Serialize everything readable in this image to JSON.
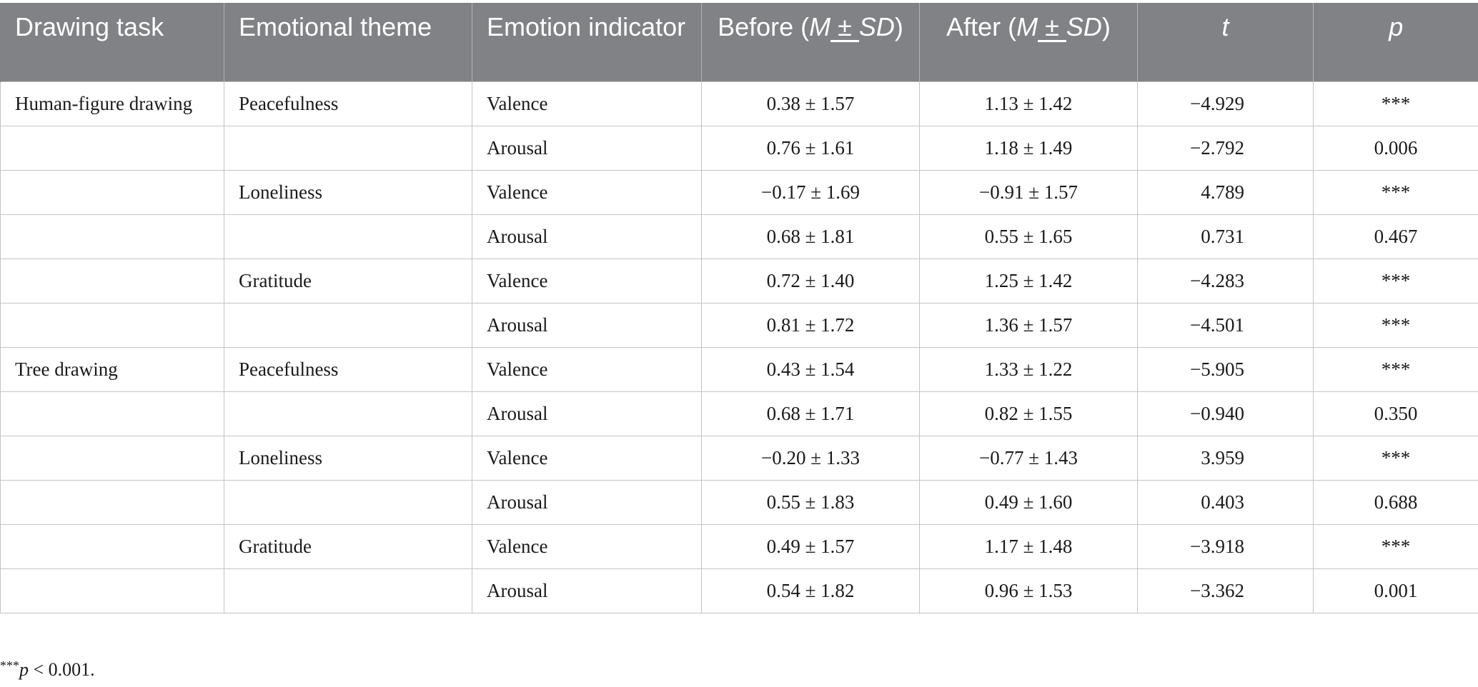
{
  "header": {
    "drawing_task": "Drawing task",
    "emotional_theme": "Emotional theme",
    "emotion_indicator": "Emotion indicator",
    "before_prefix": "Before (",
    "before_m": "M",
    "before_pm": " ± ",
    "before_sd": "SD",
    "before_suffix": ")",
    "after_prefix": "After (",
    "after_m": "M",
    "after_pm": " ± ",
    "after_sd": "SD",
    "after_suffix": ")",
    "t": "t",
    "p": "p"
  },
  "rows": [
    {
      "task": "Human-figure drawing",
      "theme": "Peacefulness",
      "indicator": "Valence",
      "before": "0.38 ± 1.57",
      "after": "1.13 ± 1.42",
      "t": "−4.929",
      "p": "***"
    },
    {
      "task": "",
      "theme": "",
      "indicator": "Arousal",
      "before": "0.76 ± 1.61",
      "after": "1.18 ± 1.49",
      "t": "−2.792",
      "p": "0.006"
    },
    {
      "task": "",
      "theme": "Loneliness",
      "indicator": "Valence",
      "before": "−0.17 ± 1.69",
      "after": "−0.91 ± 1.57",
      "t": "4.789",
      "p": "***"
    },
    {
      "task": "",
      "theme": "",
      "indicator": "Arousal",
      "before": "0.68 ± 1.81",
      "after": "0.55 ± 1.65",
      "t": "0.731",
      "p": "0.467"
    },
    {
      "task": "",
      "theme": "Gratitude",
      "indicator": "Valence",
      "before": "0.72 ± 1.40",
      "after": "1.25 ± 1.42",
      "t": "−4.283",
      "p": "***"
    },
    {
      "task": "",
      "theme": "",
      "indicator": "Arousal",
      "before": "0.81 ± 1.72",
      "after": "1.36 ± 1.57",
      "t": "−4.501",
      "p": "***"
    },
    {
      "task": "Tree drawing",
      "theme": "Peacefulness",
      "indicator": "Valence",
      "before": "0.43 ± 1.54",
      "after": "1.33 ± 1.22",
      "t": "−5.905",
      "p": "***"
    },
    {
      "task": "",
      "theme": "",
      "indicator": "Arousal",
      "before": "0.68 ± 1.71",
      "after": "0.82 ± 1.55",
      "t": "−0.940",
      "p": "0.350"
    },
    {
      "task": "",
      "theme": "Loneliness",
      "indicator": "Valence",
      "before": "−0.20 ± 1.33",
      "after": "−0.77 ± 1.43",
      "t": "3.959",
      "p": "***"
    },
    {
      "task": "",
      "theme": "",
      "indicator": "Arousal",
      "before": "0.55 ± 1.83",
      "after": "0.49 ± 1.60",
      "t": "0.403",
      "p": "0.688"
    },
    {
      "task": "",
      "theme": "Gratitude",
      "indicator": "Valence",
      "before": "0.49 ± 1.57",
      "after": "1.17 ± 1.48",
      "t": "−3.918",
      "p": "***"
    },
    {
      "task": "",
      "theme": "",
      "indicator": "Arousal",
      "before": "0.54 ± 1.82",
      "after": "0.96 ± 1.53",
      "t": "−3.362",
      "p": "0.001"
    }
  ],
  "footnote": {
    "stars": "***",
    "p": "p",
    "text": " < 0.001."
  },
  "colors": {
    "header_bg": "#808285",
    "header_text": "#ffffff",
    "grid": "#c4c4c4"
  }
}
